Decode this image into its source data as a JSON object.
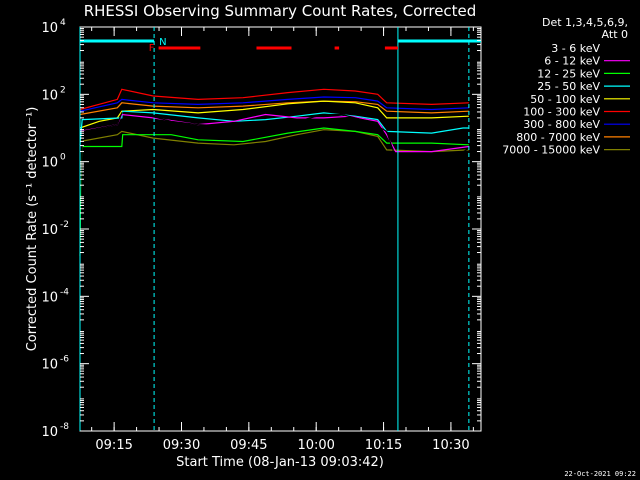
{
  "chart_data": {
    "type": "line",
    "title": "RHESSI Observing Summary Count Rates, Corrected",
    "xlabel": "Start Time (08-Jan-13 09:03:42)",
    "ylabel": "Corrected Count Rate (s⁻¹ detector⁻¹)",
    "y_scale": "log",
    "ylim_exp": [
      -8,
      4
    ],
    "y_tick_exps": [
      -8,
      -6,
      -4,
      -2,
      0,
      2,
      4
    ],
    "xlim_min": [
      3.7,
      93.0
    ],
    "x_ticks": [
      {
        "label": "09:15",
        "min": 11.3
      },
      {
        "label": "09:30",
        "min": 26.3
      },
      {
        "label": "09:45",
        "min": 41.3
      },
      {
        "label": "10:00",
        "min": 56.3
      },
      {
        "label": "10:15",
        "min": 71.3
      },
      {
        "label": "10:30",
        "min": 86.3
      }
    ],
    "grid": false,
    "legend_position": "right",
    "legend_header": [
      "Det 1,3,4,5,6,9,",
      "Att 0"
    ],
    "series": [
      {
        "name": "3 - 6 keV",
        "color": "#000000",
        "log_values": [
          [
            3.7,
            -8
          ],
          [
            4.2,
            0.9
          ],
          [
            12,
            1.1
          ],
          [
            13,
            1.45
          ],
          [
            18,
            1.4
          ],
          [
            24,
            1.2
          ],
          [
            30,
            1.1
          ],
          [
            38,
            1.05
          ],
          [
            45,
            1.0
          ],
          [
            52,
            1.2
          ],
          [
            58,
            1.4
          ],
          [
            62,
            1.4
          ],
          [
            68,
            1.2
          ],
          [
            72,
            0.9
          ],
          [
            74,
            0.1
          ],
          [
            77,
            0.0
          ],
          [
            82,
            0.1
          ],
          [
            86,
            0.05
          ],
          [
            90.3,
            0.4
          ]
        ]
      },
      {
        "name": "6 - 12 keV",
        "color": "#ff00ff",
        "log_values": [
          [
            3.7,
            0.9
          ],
          [
            12,
            1.1
          ],
          [
            13,
            1.4
          ],
          [
            20,
            1.3
          ],
          [
            30,
            1.1
          ],
          [
            38,
            1.2
          ],
          [
            45,
            1.4
          ],
          [
            52,
            1.3
          ],
          [
            58,
            1.3
          ],
          [
            64,
            1.35
          ],
          [
            70,
            1.2
          ],
          [
            72,
            0.8
          ],
          [
            74,
            0.3
          ],
          [
            82,
            0.3
          ],
          [
            90.3,
            0.45
          ]
        ]
      },
      {
        "name": "12 - 25 keV",
        "color": "#00ff00",
        "log_values": [
          [
            3.7,
            -2.8
          ],
          [
            4.2,
            0.45
          ],
          [
            13,
            0.45
          ],
          [
            13.2,
            0.8
          ],
          [
            24,
            0.8
          ],
          [
            30,
            0.65
          ],
          [
            40,
            0.6
          ],
          [
            50,
            0.85
          ],
          [
            58,
            1.0
          ],
          [
            65,
            0.9
          ],
          [
            70,
            0.8
          ],
          [
            72,
            0.55
          ],
          [
            74,
            0.55
          ],
          [
            82,
            0.55
          ],
          [
            90.3,
            0.5
          ]
        ]
      },
      {
        "name": "25 - 50 keV",
        "color": "#00ffff",
        "log_values": [
          [
            3.7,
            0.5
          ],
          [
            4.2,
            1.25
          ],
          [
            13,
            1.3
          ],
          [
            13.2,
            1.5
          ],
          [
            20,
            1.45
          ],
          [
            30,
            1.3
          ],
          [
            38,
            1.2
          ],
          [
            45,
            1.25
          ],
          [
            52,
            1.35
          ],
          [
            58,
            1.45
          ],
          [
            65,
            1.35
          ],
          [
            70,
            1.25
          ],
          [
            72,
            0.9
          ],
          [
            82,
            0.85
          ],
          [
            89,
            1.0
          ],
          [
            90.3,
            1.0
          ]
        ]
      },
      {
        "name": "50 - 100 keV",
        "color": "#ffff00",
        "log_values": [
          [
            3.7,
            1.0
          ],
          [
            8,
            1.2
          ],
          [
            12,
            1.3
          ],
          [
            13,
            1.5
          ],
          [
            20,
            1.55
          ],
          [
            30,
            1.45
          ],
          [
            40,
            1.55
          ],
          [
            50,
            1.72
          ],
          [
            58,
            1.8
          ],
          [
            65,
            1.75
          ],
          [
            70,
            1.6
          ],
          [
            72,
            1.3
          ],
          [
            82,
            1.3
          ],
          [
            90.3,
            1.35
          ]
        ]
      },
      {
        "name": "100 - 300 keV",
        "color": "#ff0000",
        "log_values": [
          [
            3.7,
            1.55
          ],
          [
            12,
            1.85
          ],
          [
            13,
            2.15
          ],
          [
            20,
            1.95
          ],
          [
            30,
            1.85
          ],
          [
            40,
            1.9
          ],
          [
            50,
            2.05
          ],
          [
            58,
            2.15
          ],
          [
            65,
            2.1
          ],
          [
            70,
            2.0
          ],
          [
            72,
            1.75
          ],
          [
            82,
            1.7
          ],
          [
            90.3,
            1.75
          ]
        ]
      },
      {
        "name": "300 - 800 keV",
        "color": "#0000ff",
        "log_values": [
          [
            3.7,
            1.5
          ],
          [
            12,
            1.75
          ],
          [
            13,
            1.85
          ],
          [
            20,
            1.75
          ],
          [
            30,
            1.7
          ],
          [
            40,
            1.75
          ],
          [
            50,
            1.85
          ],
          [
            58,
            1.92
          ],
          [
            65,
            1.9
          ],
          [
            70,
            1.8
          ],
          [
            72,
            1.6
          ],
          [
            82,
            1.55
          ],
          [
            90.3,
            1.6
          ]
        ]
      },
      {
        "name": "800 - 7000 keV",
        "color": "#ff8000",
        "log_values": [
          [
            3.7,
            1.4
          ],
          [
            12,
            1.6
          ],
          [
            13,
            1.75
          ],
          [
            20,
            1.65
          ],
          [
            30,
            1.6
          ],
          [
            40,
            1.65
          ],
          [
            50,
            1.75
          ],
          [
            58,
            1.8
          ],
          [
            65,
            1.78
          ],
          [
            70,
            1.7
          ],
          [
            72,
            1.5
          ],
          [
            82,
            1.45
          ],
          [
            90.3,
            1.5
          ]
        ]
      },
      {
        "name": "7000 - 15000 keV",
        "color": "#808000",
        "log_values": [
          [
            3.7,
            0.6
          ],
          [
            12,
            0.8
          ],
          [
            13,
            0.9
          ],
          [
            20,
            0.7
          ],
          [
            30,
            0.55
          ],
          [
            38,
            0.5
          ],
          [
            45,
            0.6
          ],
          [
            52,
            0.8
          ],
          [
            58,
            0.95
          ],
          [
            65,
            0.9
          ],
          [
            70,
            0.75
          ],
          [
            72,
            0.35
          ],
          [
            82,
            0.3
          ],
          [
            90.3,
            0.35
          ]
        ]
      }
    ],
    "markers": {
      "night_label": "N",
      "night_color": "#00ffff",
      "night_bars_min": [
        [
          3.7,
          20.2
        ],
        [
          74.5,
          93.0
        ]
      ],
      "night_dashed_min": [
        20.2,
        90.3
      ],
      "night_solid_min": [
        3.7,
        74.5
      ],
      "flare_label": "F",
      "flare_color": "#ff0000",
      "flare_label_min": 19.0,
      "flare_bars_min": [
        [
          21.2,
          30.5
        ],
        [
          43.0,
          50.8
        ],
        [
          60.4,
          61.4
        ],
        [
          71.6,
          74.5
        ]
      ]
    },
    "footer_date": "22-Oct-2021 09:22"
  }
}
